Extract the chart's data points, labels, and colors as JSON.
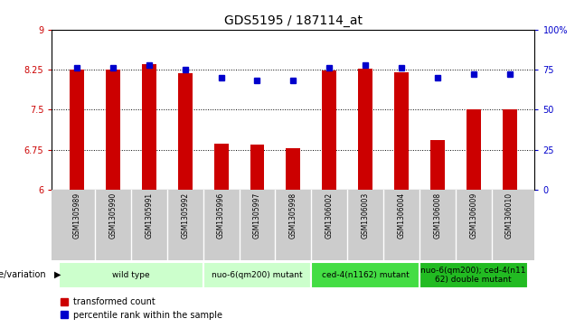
{
  "title": "GDS5195 / 187114_at",
  "samples": [
    "GSM1305989",
    "GSM1305990",
    "GSM1305991",
    "GSM1305992",
    "GSM1305996",
    "GSM1305997",
    "GSM1305998",
    "GSM1306002",
    "GSM1306003",
    "GSM1306004",
    "GSM1306008",
    "GSM1306009",
    "GSM1306010"
  ],
  "bar_values": [
    8.25,
    8.25,
    8.35,
    8.18,
    6.87,
    6.84,
    6.78,
    8.23,
    8.27,
    8.2,
    6.94,
    7.5,
    7.5
  ],
  "dot_values": [
    76,
    76,
    78,
    75,
    70,
    68,
    68,
    76,
    78,
    76,
    70,
    72,
    72
  ],
  "bar_color": "#cc0000",
  "dot_color": "#0000cc",
  "ylim_left": [
    6,
    9
  ],
  "ylim_right": [
    0,
    100
  ],
  "yticks_left": [
    6,
    6.75,
    7.5,
    8.25,
    9
  ],
  "yticks_right": [
    0,
    25,
    50,
    75,
    100
  ],
  "ylabel_left_color": "#cc0000",
  "ylabel_right_color": "#0000cc",
  "groups": [
    {
      "label": "wild type",
      "start": 0,
      "end": 3,
      "color": "#ccffcc"
    },
    {
      "label": "nuo-6(qm200) mutant",
      "start": 4,
      "end": 6,
      "color": "#ccffcc"
    },
    {
      "label": "ced-4(n1162) mutant",
      "start": 7,
      "end": 9,
      "color": "#44dd44"
    },
    {
      "label": "nuo-6(qm200); ced-4(n11\n62) double mutant",
      "start": 10,
      "end": 12,
      "color": "#22bb22"
    }
  ],
  "group_label_prefix": "genotype/variation",
  "legend_bar_label": "transformed count",
  "legend_dot_label": "percentile rank within the sample",
  "bg_color": "#ffffff",
  "tick_area_bg": "#cccccc",
  "bar_width": 0.4
}
